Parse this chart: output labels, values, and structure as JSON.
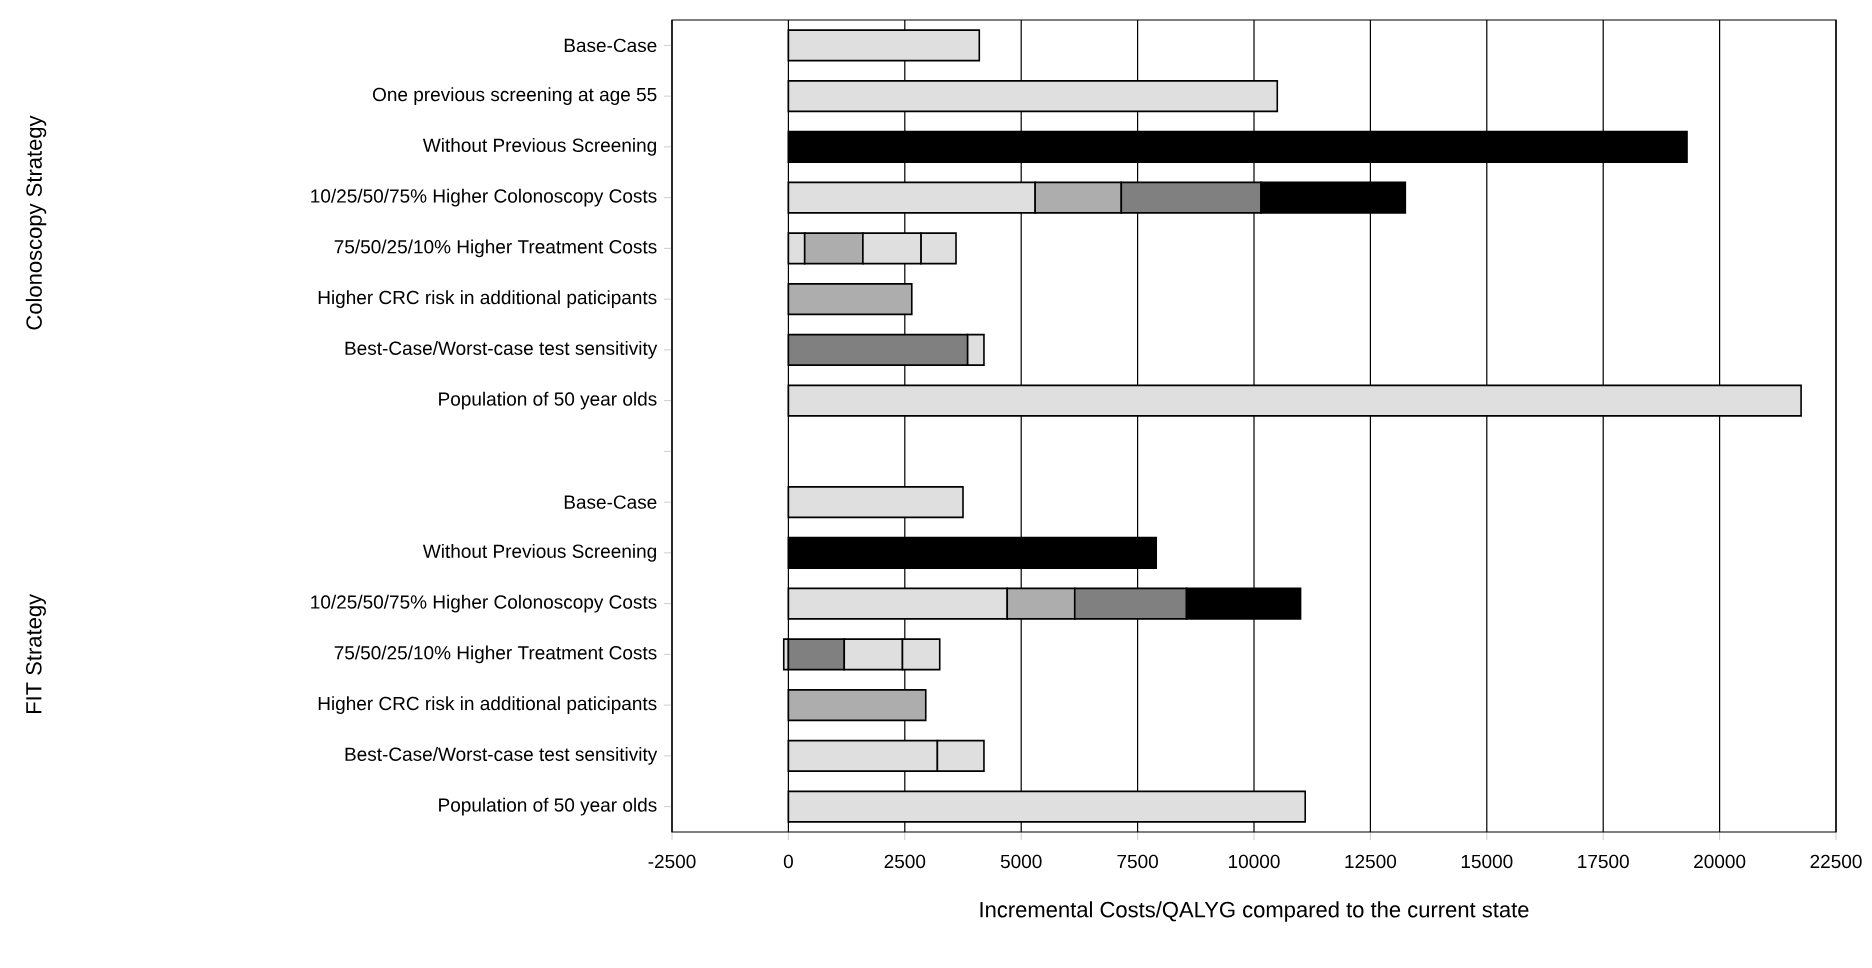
{
  "chart_data": {
    "type": "bar",
    "orientation": "horizontal",
    "stacked": true,
    "xlabel": "Incremental Costs/QALYG compared to the current state",
    "annotations": [
      "Colonoscopy Strategy",
      "FIT Strategy"
    ],
    "categories": [
      "Base-Case",
      "One previous screening at age 55",
      "Without Previous Screening",
      "10/25/50/75% Higher Colonoscopy Costs",
      "75/50/25/10% Higher Treatment Costs",
      "Higher CRC risk in additional paticipants",
      "Best-Case/Worst-case test sensitivity",
      "Population of 50 year olds",
      null,
      "Base-Case",
      "Without Previous Screening",
      "10/25/50/75% Higher Colonoscopy Costs",
      "75/50/25/10% Higher Treatment Costs",
      "Higher CRC risk in additional paticipants",
      "Best-Case/Worst-case test sensitivity",
      "Population of 50 year olds"
    ],
    "series": [
      {
        "values": [
          4100,
          10500,
          19300,
          5300,
          350,
          2650,
          3850,
          21750,
          null,
          3750,
          7900,
          4700,
          -100,
          2950,
          3200,
          11100
        ],
        "colors": [
          "#dfdfdf",
          "#dfdfdf",
          "#000000",
          "#dfdfdf",
          "#dfdfdf",
          "#adadad",
          "#808080",
          "#dfdfdf",
          null,
          "#dfdfdf",
          "#000000",
          "#dfdfdf",
          "#dfdfdf",
          "#adadad",
          "#dfdfdf",
          "#dfdfdf"
        ]
      },
      {
        "values": [
          null,
          null,
          null,
          1850,
          1250,
          null,
          350,
          null,
          null,
          null,
          null,
          1450,
          1200,
          null,
          1000,
          null
        ],
        "colors": [
          null,
          null,
          null,
          "#adadad",
          "#adadad",
          null,
          "#dfdfdf",
          null,
          null,
          null,
          null,
          "#adadad",
          "#808080",
          null,
          "#dfdfdf",
          null
        ]
      },
      {
        "values": [
          null,
          null,
          null,
          3000,
          1250,
          null,
          null,
          null,
          null,
          null,
          null,
          2400,
          1250,
          null,
          null,
          null
        ],
        "colors": [
          null,
          null,
          null,
          "#808080",
          "#dfdfdf",
          null,
          null,
          null,
          null,
          null,
          null,
          "#808080",
          "#dfdfdf",
          null,
          null,
          null
        ]
      },
      {
        "values": [
          null,
          null,
          null,
          3100,
          750,
          null,
          null,
          null,
          null,
          null,
          null,
          2450,
          800,
          null,
          null,
          null
        ],
        "colors": [
          null,
          null,
          null,
          "#000000",
          "#dfdfdf",
          null,
          null,
          null,
          null,
          null,
          null,
          "#000000",
          "#dfdfdf",
          null,
          null,
          null
        ]
      }
    ],
    "xlim": [
      -2500,
      22500
    ],
    "xticks": [
      -2500,
      0,
      2500,
      5000,
      7500,
      10000,
      12500,
      15000,
      17500,
      20000,
      22500
    ],
    "grid": "x"
  }
}
